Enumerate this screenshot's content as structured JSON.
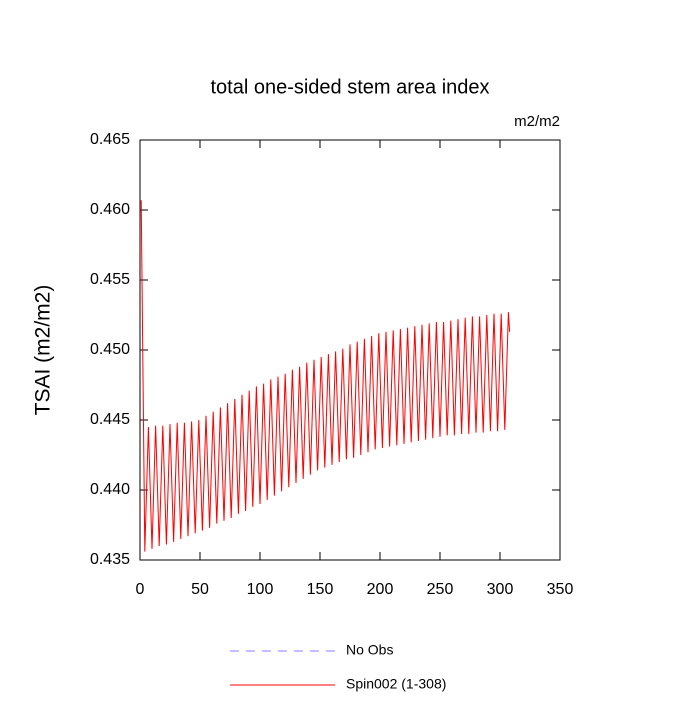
{
  "chart_data": {
    "type": "line",
    "title": "total one-sided stem area index",
    "units_label": "m2/m2",
    "y_label": "TSAI  (m2/m2)",
    "xlim": [
      0,
      350
    ],
    "xticks": [
      0,
      50,
      100,
      150,
      200,
      250,
      300,
      350
    ],
    "ylim": [
      0.435,
      0.465
    ],
    "yticks": [
      0.435,
      {
        "value": 0.44,
        "label": "0.440"
      },
      0.445,
      {
        "value": 0.45,
        "label": "0.450"
      },
      0.455,
      {
        "value": 0.46,
        "label": "0.460"
      },
      0.465
    ],
    "x": [
      1,
      4,
      7,
      10,
      13,
      16,
      19,
      22,
      25,
      28,
      31,
      34,
      37,
      40,
      43,
      46,
      49,
      52,
      55,
      58,
      61,
      64,
      67,
      70,
      73,
      76,
      79,
      82,
      85,
      88,
      91,
      94,
      97,
      100,
      103,
      106,
      109,
      112,
      115,
      118,
      121,
      124,
      127,
      130,
      133,
      136,
      139,
      142,
      145,
      148,
      151,
      154,
      157,
      160,
      163,
      166,
      169,
      172,
      175,
      178,
      181,
      184,
      187,
      190,
      193,
      196,
      199,
      202,
      205,
      208,
      211,
      214,
      217,
      220,
      223,
      226,
      229,
      232,
      235,
      238,
      241,
      244,
      247,
      250,
      253,
      256,
      259,
      262,
      265,
      268,
      271,
      274,
      277,
      280,
      283,
      286,
      289,
      292,
      295,
      298,
      301,
      304,
      307,
      308
    ],
    "series": [
      {
        "name": "Spin002 (1-308)",
        "color": "#ff0000",
        "values": [
          0.4607,
          0.4356,
          0.4445,
          0.4358,
          0.4446,
          0.436,
          0.4446,
          0.4361,
          0.4447,
          0.4363,
          0.4448,
          0.4365,
          0.4448,
          0.4367,
          0.4449,
          0.4369,
          0.445,
          0.4371,
          0.4453,
          0.4373,
          0.4456,
          0.4376,
          0.4459,
          0.4378,
          0.4462,
          0.438,
          0.4465,
          0.4383,
          0.4468,
          0.4385,
          0.4471,
          0.4388,
          0.4474,
          0.439,
          0.4476,
          0.4393,
          0.4479,
          0.4396,
          0.4481,
          0.4399,
          0.4483,
          0.4402,
          0.4486,
          0.4405,
          0.4488,
          0.4408,
          0.4491,
          0.4411,
          0.4493,
          0.4414,
          0.4495,
          0.4416,
          0.4497,
          0.4418,
          0.4499,
          0.442,
          0.4501,
          0.4422,
          0.4504,
          0.4423,
          0.4506,
          0.4425,
          0.4508,
          0.4427,
          0.451,
          0.4429,
          0.4512,
          0.443,
          0.4513,
          0.4431,
          0.4514,
          0.4432,
          0.4515,
          0.4433,
          0.4516,
          0.4434,
          0.4517,
          0.4435,
          0.4518,
          0.4436,
          0.4519,
          0.4437,
          0.452,
          0.4438,
          0.452,
          0.4439,
          0.4521,
          0.4439,
          0.4522,
          0.444,
          0.4523,
          0.444,
          0.4524,
          0.4441,
          0.4524,
          0.4441,
          0.4525,
          0.4442,
          0.4526,
          0.4442,
          0.4526,
          0.4443,
          0.4527,
          0.4513
        ]
      }
    ],
    "extra_legend": [
      {
        "name": "No Obs",
        "color": "#8080ff",
        "dash": "dashed"
      }
    ]
  }
}
